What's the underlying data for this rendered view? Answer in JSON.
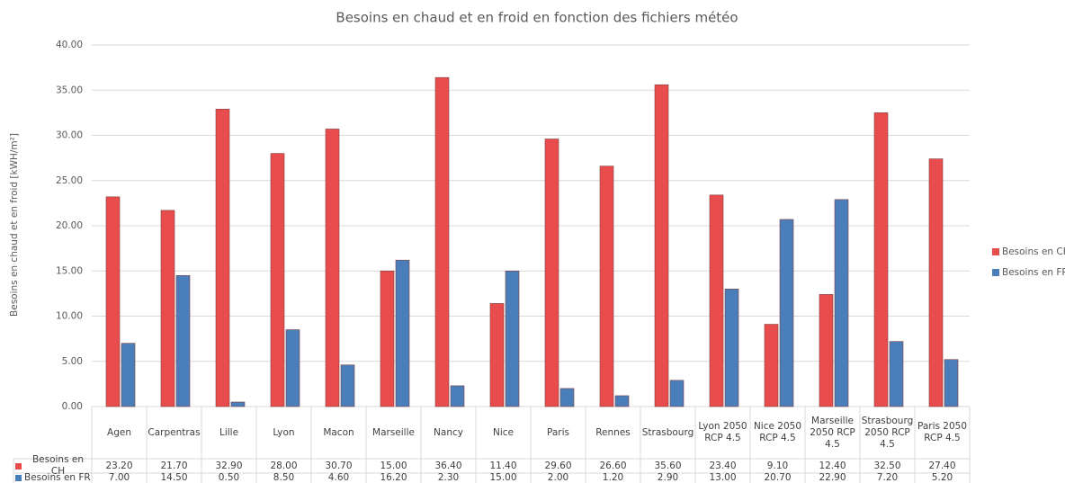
{
  "chart_data": {
    "type": "bar",
    "title": "Besoins en chaud et en froid en fonction des fichiers météo",
    "y_label": "Besoins en chaud et en froid [kWH/m²]",
    "categories": [
      "Agen",
      "Carpentras",
      "Lille",
      "Lyon",
      "Macon",
      "Marseille",
      "Nancy",
      "Nice",
      "Paris",
      "Rennes",
      "Strasbourg",
      "Lyon 2050 RCP 4.5",
      "Nice 2050 RCP 4.5",
      "Marseille 2050 RCP 4.5",
      "Strasbourg 2050 RCP 4.5",
      "Paris 2050 RCP 4.5"
    ],
    "series": [
      {
        "name": "Besoins en CH",
        "color": "#e84c4c",
        "values": [
          23.2,
          21.7,
          32.9,
          28,
          30.7,
          15,
          36.4,
          11.4,
          29.6,
          26.6,
          35.6,
          23.4,
          9.1,
          12.4,
          32.5,
          27.4
        ],
        "value_labels": [
          "23.20",
          "21.70",
          "32.90",
          "28.00",
          "30.70",
          "15.00",
          "36.40",
          "11.40",
          "29.60",
          "26.60",
          "35.60",
          "23.40",
          "9.10",
          "12.40",
          "32.50",
          "27.40"
        ]
      },
      {
        "name": "Besoins en FR",
        "color": "#4a7ebb",
        "values": [
          7,
          14.5,
          0.5,
          8.5,
          4.6,
          16.2,
          2.3,
          15,
          2,
          1.2,
          2.9,
          13,
          20.7,
          22.9,
          7.2,
          5.2
        ],
        "value_labels": [
          "7.00",
          "14.50",
          "0.50",
          "8.50",
          "4.60",
          "16.20",
          "2.30",
          "15.00",
          "2.00",
          "1.20",
          "2.90",
          "13.00",
          "20.70",
          "22.90",
          "7.20",
          "5.20"
        ]
      }
    ],
    "ylim": [
      0,
      40
    ],
    "yticks": [
      {
        "value": 0,
        "label": "0.00"
      },
      {
        "value": 5,
        "label": "5.00"
      },
      {
        "value": 10,
        "label": "10.00"
      },
      {
        "value": 15,
        "label": "15.00"
      },
      {
        "value": 20,
        "label": "20.00"
      },
      {
        "value": 25,
        "label": "25.00"
      },
      {
        "value": 30,
        "label": "30.00"
      },
      {
        "value": 35,
        "label": "35.00"
      },
      {
        "value": 40,
        "label": "40.00"
      }
    ],
    "grid": true,
    "legend": "right"
  }
}
